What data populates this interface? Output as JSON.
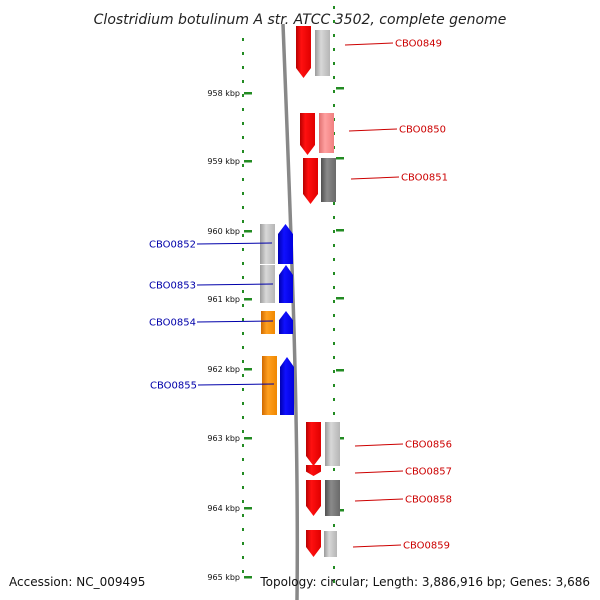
{
  "title": "Clostridium botulinum A str. ATCC 3502, complete genome",
  "footer": {
    "accession": "Accession: NC_009495",
    "topology": "Topology: circular; Length: 3,886,916 bp; Genes: 3,686"
  },
  "colors": {
    "forward_gene": "#ff0000",
    "reverse_gene": "#0000ff",
    "forward_label": "#cc0000",
    "reverse_label": "#0000aa",
    "ruler": "#228b22",
    "axis": "#888888",
    "orange_gene": "#ff8c00"
  },
  "ruler_ticks": [
    {
      "label": "958 kbp"
    },
    {
      "label": "959 kbp"
    },
    {
      "label": "960 kbp"
    },
    {
      "label": "961 kbp"
    },
    {
      "label": "962 kbp"
    },
    {
      "label": "963 kbp"
    },
    {
      "label": "964 kbp"
    },
    {
      "label": "965 kbp"
    }
  ],
  "genes_forward": [
    {
      "id": "CBO0849"
    },
    {
      "id": "CBO0850"
    },
    {
      "id": "CBO0851"
    },
    {
      "id": "CBO0856"
    },
    {
      "id": "CBO0857"
    },
    {
      "id": "CBO0858"
    },
    {
      "id": "CBO0859"
    }
  ],
  "genes_reverse": [
    {
      "id": "CBO0852"
    },
    {
      "id": "CBO0853"
    },
    {
      "id": "CBO0854"
    },
    {
      "id": "CBO0855"
    }
  ]
}
